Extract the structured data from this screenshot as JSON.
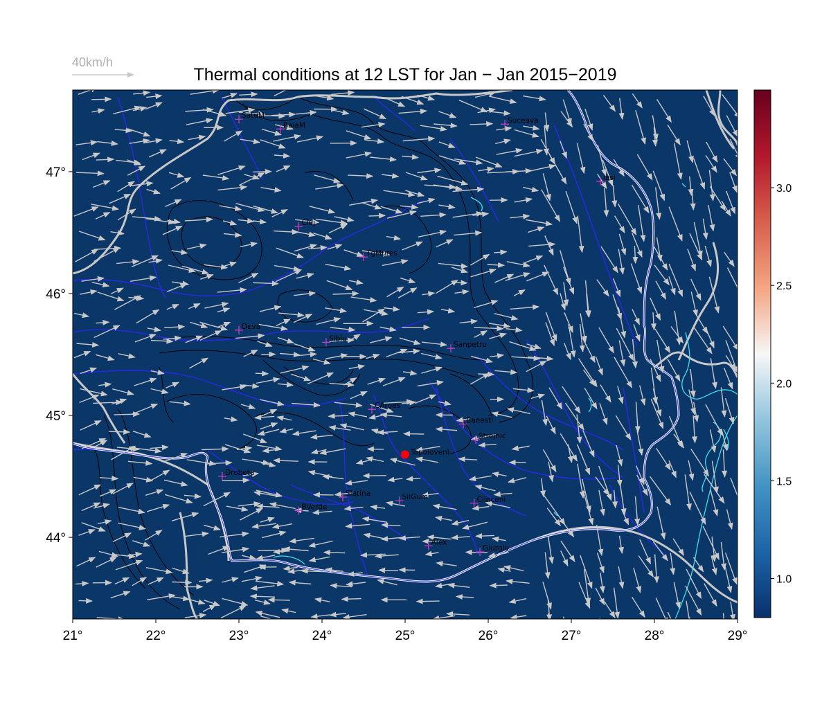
{
  "title": "Thermal conditions at 12 LST for Jan − Jan  2015−2019",
  "reference_vector": {
    "label": "40km/h",
    "speed_kmh": 40
  },
  "map": {
    "lon_range": [
      21,
      29
    ],
    "lat_range": [
      43.33,
      47.67
    ],
    "background_color": "#0b3768",
    "contour_color": "#000000",
    "river_color": "#2828e8",
    "border_color": "#c8c8c8",
    "coast_color": "#40e0f0",
    "wind_color": "#c8c8c8"
  },
  "x_ticks": [
    {
      "value": 21,
      "label": "21°"
    },
    {
      "value": 22,
      "label": "22°"
    },
    {
      "value": 23,
      "label": "23°"
    },
    {
      "value": 24,
      "label": "24°"
    },
    {
      "value": 25,
      "label": "25°"
    },
    {
      "value": 26,
      "label": "26°"
    },
    {
      "value": 27,
      "label": "27°"
    },
    {
      "value": 28,
      "label": "28°"
    },
    {
      "value": 29,
      "label": "29°"
    }
  ],
  "y_ticks": [
    {
      "value": 44,
      "label": "44°"
    },
    {
      "value": 45,
      "label": "45°"
    },
    {
      "value": 46,
      "label": "46°"
    },
    {
      "value": 47,
      "label": "47°"
    }
  ],
  "colorbar": {
    "range": [
      0.8,
      3.5
    ],
    "ticks": [
      {
        "value": 1.0,
        "label": "1.0"
      },
      {
        "value": 1.5,
        "label": "1.5"
      },
      {
        "value": 2.0,
        "label": "2.0"
      },
      {
        "value": 2.5,
        "label": "2.5"
      },
      {
        "value": 3.0,
        "label": "3.0"
      }
    ],
    "colors": [
      "#08306b",
      "#1c64a8",
      "#4393c3",
      "#92c5de",
      "#f7f7f7",
      "#f4a582",
      "#d6604d",
      "#b2182b",
      "#67001f"
    ]
  },
  "stations": [
    {
      "name": "SatuM",
      "lon": 23.0,
      "lat": 47.43
    },
    {
      "name": "BaiaM",
      "lon": 23.5,
      "lat": 47.35
    },
    {
      "name": "Suceava",
      "lon": 26.2,
      "lat": 47.39
    },
    {
      "name": "Iasi",
      "lon": 27.35,
      "lat": 46.92
    },
    {
      "name": "Cluj",
      "lon": 23.72,
      "lat": 46.55
    },
    {
      "name": "TgMures",
      "lon": 24.5,
      "lat": 46.3
    },
    {
      "name": "Deva",
      "lon": 23.0,
      "lat": 45.7
    },
    {
      "name": "Sibiu",
      "lon": 24.05,
      "lat": 45.6
    },
    {
      "name": "Sanpetru",
      "lon": 25.55,
      "lat": 45.55
    },
    {
      "name": "CArges",
      "lon": 24.6,
      "lat": 45.05
    },
    {
      "name": "Banesti",
      "lon": 25.7,
      "lat": 44.93
    },
    {
      "name": "Strejnic",
      "lon": 25.85,
      "lat": 44.8
    },
    {
      "name": "Drobeta",
      "lon": 22.8,
      "lat": 44.5
    },
    {
      "name": "Slatina",
      "lon": 24.25,
      "lat": 44.33
    },
    {
      "name": "SilGum",
      "lon": 24.93,
      "lat": 44.3
    },
    {
      "name": "BVerde",
      "lon": 23.72,
      "lat": 44.22
    },
    {
      "name": "Clinceni",
      "lon": 25.83,
      "lat": 44.28
    },
    {
      "name": "Alex",
      "lon": 25.28,
      "lat": 43.93
    },
    {
      "name": "Giurgiu",
      "lon": 25.9,
      "lat": 43.88
    }
  ],
  "highlight_station": {
    "name": "Topoloveni",
    "lon": 25.0,
    "lat": 44.68,
    "color": "#ff0000"
  }
}
